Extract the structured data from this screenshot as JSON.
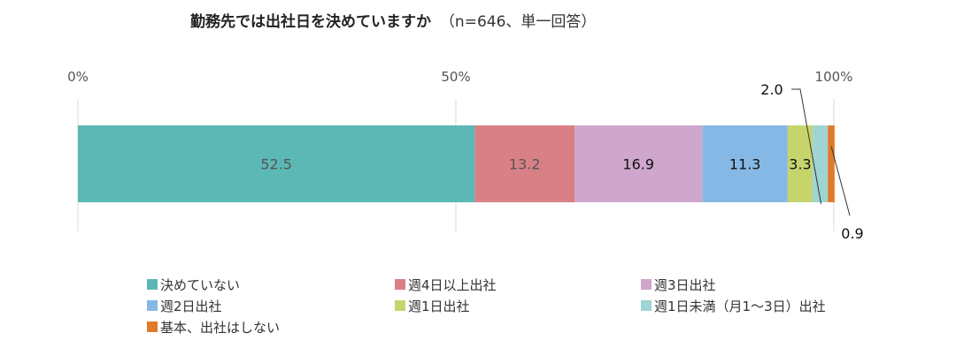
{
  "chart_data": {
    "type": "bar",
    "orientation": "horizontal",
    "stacked": true,
    "title": "勤務先では出社日を決めていますか",
    "subtitle": "（n=646、単一回答）",
    "xlabel": "",
    "ylabel": "",
    "xlim": [
      0,
      100
    ],
    "ticks": [
      {
        "value": 0,
        "label": "0%"
      },
      {
        "value": 50,
        "label": "50%"
      },
      {
        "value": 100,
        "label": "100%"
      }
    ],
    "grid": true,
    "legend_position": "bottom",
    "series": [
      {
        "name": "決めていない",
        "value": 52.5,
        "label": "52.5",
        "color": "#5bb8b4"
      },
      {
        "name": "週4日以上出社",
        "value": 13.2,
        "label": "13.2",
        "color": "#d98087"
      },
      {
        "name": "週3日出社",
        "value": 16.9,
        "label": "16.9",
        "color": "#cfa6cc"
      },
      {
        "name": "週2日出社",
        "value": 11.3,
        "label": "11.3",
        "color": "#86b8e6"
      },
      {
        "name": "週1日出社",
        "value": 3.3,
        "label": "3.3",
        "color": "#c6d46c"
      },
      {
        "name": "週1日未満（月1～3日）出社",
        "value": 2.0,
        "label": "2.0",
        "color": "#9fd4d4"
      },
      {
        "name": "基本、出社はしない",
        "value": 0.9,
        "label": "0.9",
        "color": "#e07b2a"
      }
    ]
  }
}
